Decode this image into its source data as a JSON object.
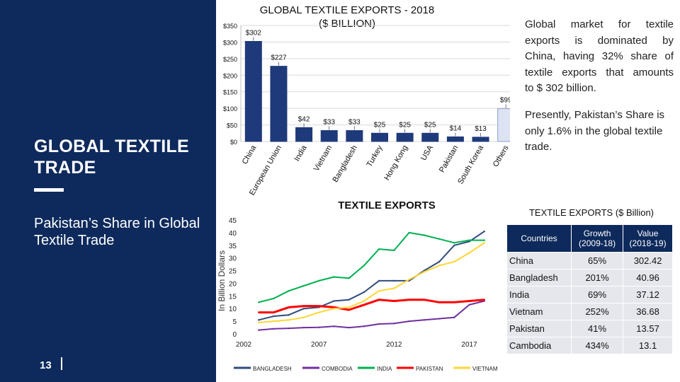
{
  "left": {
    "title_line1": "GLOBAL TEXTILE",
    "title_line2": "TRADE",
    "subtitle": "Pakistan’s Share in Global Textile Trade",
    "page_number": "13"
  },
  "text": {
    "para1_lines": [
      "Global market for textile",
      "exports is dominated by",
      "China, having 32% share of",
      "textile exports that amounts",
      "to $ 302 billion."
    ],
    "para2": "Presently, Pakistan’s Share is only 1.6% in the global textile trade."
  },
  "table": {
    "title": "TEXTILE EXPORTS ($ Billion)",
    "headers": [
      "Countries",
      "Growth (2009-18)",
      "Value (2018-19)"
    ],
    "rows": [
      [
        "China",
        "65%",
        "302.42"
      ],
      [
        "Bangladesh",
        "201%",
        "40.96"
      ],
      [
        "India",
        "69%",
        "37.12"
      ],
      [
        "Vietnam",
        "252%",
        "36.68"
      ],
      [
        "Pakistan",
        "41%",
        "13.57"
      ],
      [
        "Cambodia",
        "434%",
        "13.1"
      ]
    ]
  },
  "colors": {
    "navy": "#0e2a5c",
    "bar_dark": "#1f3a7a",
    "bar_light": "#dde3f3",
    "bangladesh": "#2f4b7c",
    "combodia": "#7030a0",
    "india": "#00b050",
    "pakistan": "#ff0000",
    "vietnam": "#ffd633"
  },
  "chart_data": [
    {
      "type": "bar",
      "title_line1": "GLOBAL TEXTILE EXPORTS - 2018",
      "title_line2": "($ BILLION)",
      "categories": [
        "China",
        "European Union",
        "India",
        "Vietnam",
        "Bangladesh",
        "Turkey",
        "Hong Kong",
        "USA",
        "Pakistan",
        "South Korea",
        "Others"
      ],
      "values": [
        302,
        227,
        42,
        33,
        33,
        25,
        25,
        25,
        14,
        13,
        99
      ],
      "value_labels": [
        "$302",
        "$227",
        "$42",
        "$33",
        "$33",
        "$25",
        "$25",
        "$25",
        "$14",
        "$13",
        "$99"
      ],
      "yticks": [
        0,
        50,
        100,
        150,
        200,
        250,
        300,
        350
      ],
      "ytick_labels": [
        "$0",
        "$50",
        "$100",
        "$150",
        "$200",
        "$250",
        "$300",
        "$350"
      ],
      "ylim": [
        0,
        350
      ],
      "highlight": [
        "Pakistan"
      ],
      "light": [
        "Others"
      ]
    },
    {
      "type": "line",
      "title": "TEXTILE EXPORTS",
      "ylabel": "In Billion Dollars",
      "x": [
        2003,
        2004,
        2005,
        2006,
        2007,
        2008,
        2009,
        2010,
        2011,
        2012,
        2013,
        2014,
        2015,
        2016,
        2017,
        2018
      ],
      "xticks": [
        2002,
        2007,
        2012,
        2017
      ],
      "xlim": [
        2002,
        2019
      ],
      "yticks": [
        0,
        5,
        10,
        15,
        20,
        25,
        30,
        35,
        40,
        45
      ],
      "ylim": [
        0,
        45
      ],
      "series": [
        {
          "name": "BANGLADESH",
          "values": [
            5.5,
            7,
            7.5,
            10,
            10.5,
            13,
            13.5,
            16.5,
            21,
            21,
            21,
            25,
            28.5,
            35,
            36.5,
            40.5
          ]
        },
        {
          "name": "COMBODIA",
          "values": [
            1.5,
            2,
            2.2,
            2.5,
            2.6,
            3,
            2.5,
            3,
            3.9,
            4.1,
            5,
            5.5,
            6,
            6.5,
            11.5,
            13
          ]
        },
        {
          "name": "INDIA",
          "values": [
            12.5,
            14,
            17,
            19,
            21,
            22.5,
            22,
            27,
            33.5,
            33,
            40,
            39,
            37.5,
            36,
            37,
            37
          ]
        },
        {
          "name": "PAKISTAN",
          "values": [
            8.5,
            8.5,
            10.5,
            11,
            11,
            10.5,
            9.5,
            11.5,
            13.5,
            13,
            13.5,
            13.5,
            12.5,
            12.5,
            13,
            13.5
          ]
        },
        {
          "name": "VIETNAM",
          "values": [
            4.5,
            5,
            5.5,
            6.5,
            8.5,
            10,
            10.5,
            13,
            17,
            18,
            21.5,
            24.5,
            27,
            28.5,
            32,
            36
          ]
        }
      ]
    }
  ]
}
